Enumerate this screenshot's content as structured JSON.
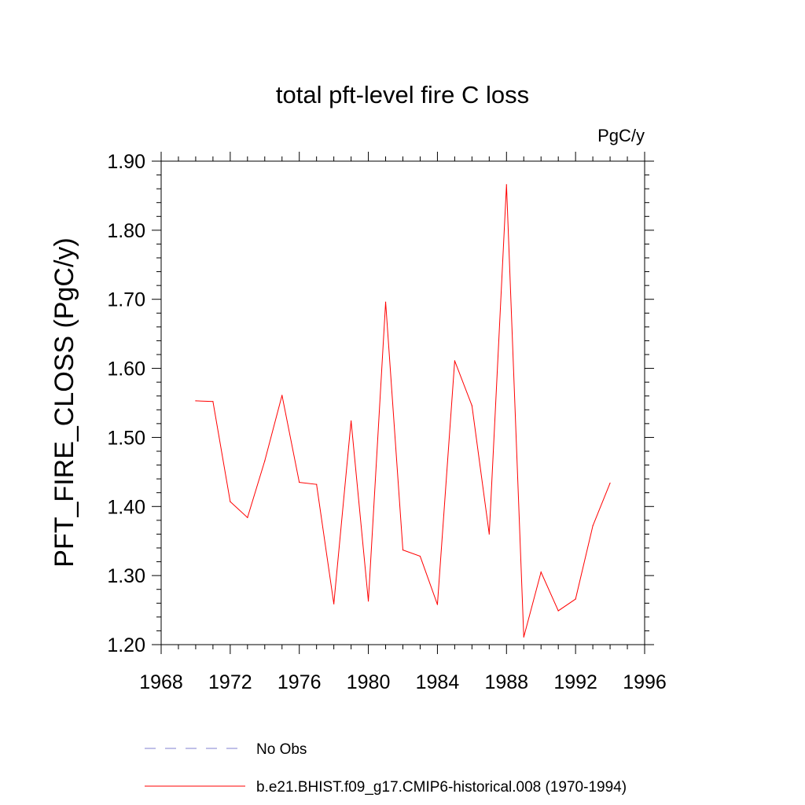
{
  "chart_data": {
    "type": "line",
    "title": "total pft-level fire C loss",
    "units_label": "PgC/y",
    "ylabel": "PFT_FIRE_CLOSS  (PgC/y)",
    "xlabel": "",
    "xlim": [
      1968,
      1996
    ],
    "ylim": [
      1.2,
      1.9
    ],
    "x_ticks": [
      1968,
      1972,
      1976,
      1980,
      1984,
      1988,
      1992,
      1996
    ],
    "x_tick_labels": [
      "1968",
      "1972",
      "1976",
      "1980",
      "1984",
      "1988",
      "1992",
      "1996"
    ],
    "y_ticks": [
      1.2,
      1.3,
      1.4,
      1.5,
      1.6,
      1.7,
      1.8,
      1.9
    ],
    "y_tick_labels": [
      "1.20",
      "1.30",
      "1.40",
      "1.50",
      "1.60",
      "1.70",
      "1.80",
      "1.90"
    ],
    "grid": false,
    "legend_placement": "bottom",
    "series": [
      {
        "name": "b.e21.BHIST.f09_g17.CMIP6-historical.008 (1970-1994)",
        "color": "#ff0000",
        "style": "solid",
        "x": [
          1970,
          1971,
          1972,
          1973,
          1974,
          1975,
          1976,
          1977,
          1978,
          1979,
          1980,
          1981,
          1982,
          1983,
          1984,
          1985,
          1986,
          1987,
          1988,
          1989,
          1990,
          1991,
          1992,
          1993,
          1994
        ],
        "values": [
          1.553,
          1.552,
          1.407,
          1.384,
          1.466,
          1.561,
          1.435,
          1.432,
          1.259,
          1.524,
          1.263,
          1.696,
          1.337,
          1.328,
          1.258,
          1.611,
          1.546,
          1.36,
          1.866,
          1.211,
          1.305,
          1.249,
          1.266,
          1.372,
          1.434
        ]
      }
    ],
    "legend": [
      {
        "label": "No Obs",
        "color": "#8080d0",
        "style": "dashed"
      },
      {
        "label": "b.e21.BHIST.f09_g17.CMIP6-historical.008 (1970-1994)",
        "color": "#ff0000",
        "style": "solid"
      }
    ]
  }
}
